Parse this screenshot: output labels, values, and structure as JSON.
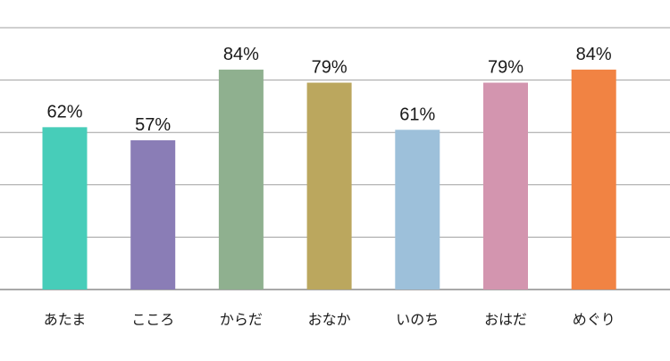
{
  "chart_data": {
    "type": "bar",
    "categories": [
      "あたま",
      "こころ",
      "からだ",
      "おなか",
      "いのち",
      "おはだ",
      "めぐり"
    ],
    "values": [
      62,
      57,
      84,
      79,
      61,
      79,
      84
    ],
    "data_labels": [
      "62%",
      "57%",
      "84%",
      "79%",
      "61%",
      "79%",
      "84%"
    ],
    "unit": "%",
    "ylim": [
      0,
      100
    ],
    "grid": true,
    "colors": [
      "#47cdb9",
      "#8a7db6",
      "#8fb08f",
      "#bba75e",
      "#9dc0da",
      "#d395af",
      "#f18343"
    ]
  }
}
